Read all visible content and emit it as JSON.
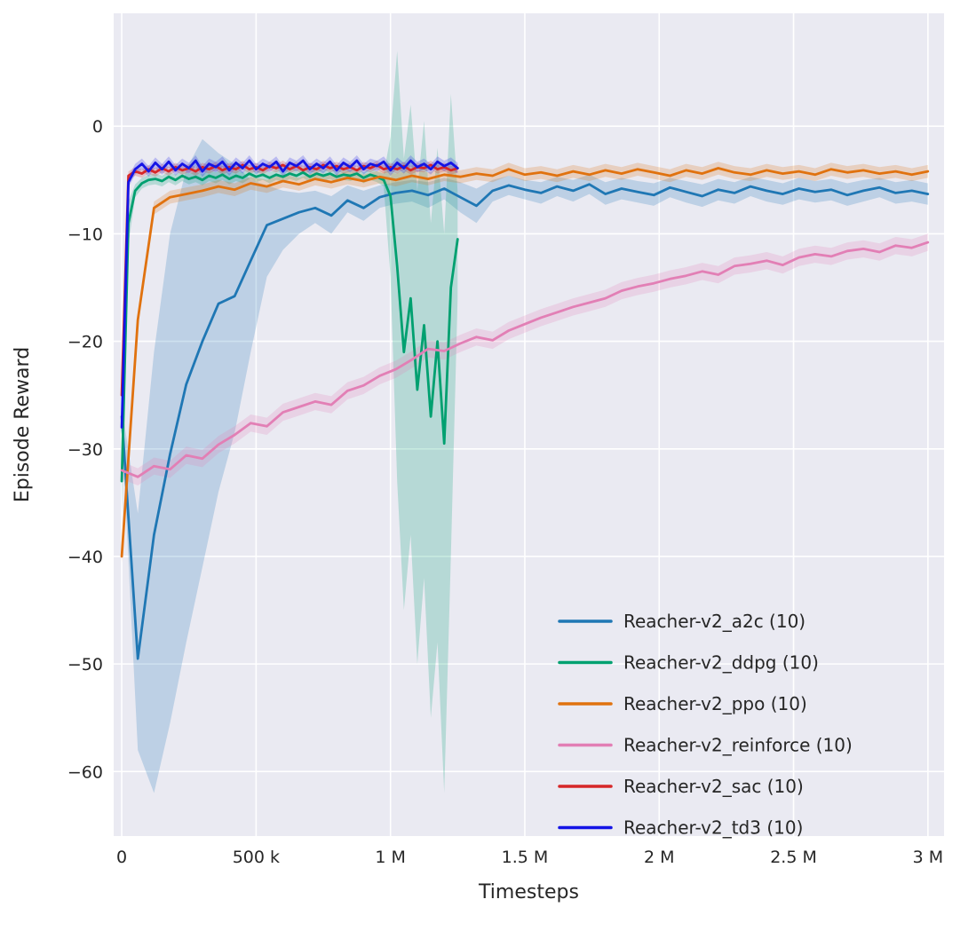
{
  "chart_data": {
    "type": "line",
    "title": "",
    "xlabel": "Timesteps",
    "ylabel": "Episode Reward",
    "x_unit": "timesteps (values below are in thousands)",
    "xlim": [
      -30,
      3060
    ],
    "ylim": [
      -66,
      10.5
    ],
    "grid": true,
    "legend_position": "lower right",
    "xticks": {
      "values": [
        0,
        500,
        1000,
        1500,
        2000,
        2500,
        3000
      ],
      "labels": [
        "0",
        "500 k",
        "1 M",
        "1.5 M",
        "2 M",
        "2.5 M",
        "3 M"
      ]
    },
    "yticks": {
      "values": [
        0,
        -10,
        -20,
        -30,
        -40,
        -50,
        -60
      ],
      "labels": [
        "0",
        "−10",
        "−20",
        "−30",
        "−40",
        "−50",
        "−60"
      ]
    },
    "style": {
      "plot_bg": "#eaeaf2",
      "grid_color": "#ffffff",
      "text_color": "#262626",
      "band_opacity": 0.22,
      "line_width": 2.8
    },
    "series": [
      {
        "name": "a2c",
        "label": "Reacher-v2_a2c (10)",
        "color": "#1f77b4",
        "x": [
          0,
          60,
          120,
          180,
          240,
          300,
          360,
          420,
          480,
          540,
          600,
          660,
          720,
          780,
          840,
          900,
          960,
          1020,
          1080,
          1140,
          1200,
          1260,
          1320,
          1380,
          1440,
          1500,
          1560,
          1620,
          1680,
          1740,
          1800,
          1860,
          1920,
          1980,
          2040,
          2100,
          2160,
          2220,
          2280,
          2340,
          2400,
          2460,
          2520,
          2580,
          2640,
          2700,
          2760,
          2820,
          2880,
          2940,
          3000
        ],
        "y": [
          -27,
          -49.5,
          -38,
          -30.5,
          -24,
          -20,
          -16.5,
          -15.8,
          -12.5,
          -9.2,
          -8.6,
          -8.0,
          -7.6,
          -8.3,
          -6.9,
          -7.6,
          -6.6,
          -6.2,
          -6.0,
          -6.4,
          -5.8,
          -6.6,
          -7.4,
          -6.0,
          -5.5,
          -5.9,
          -6.2,
          -5.6,
          -6.0,
          -5.4,
          -6.3,
          -5.8,
          -6.1,
          -6.4,
          -5.7,
          -6.1,
          -6.5,
          -5.9,
          -6.2,
          -5.6,
          -6.0,
          -6.3,
          -5.8,
          -6.1,
          -5.9,
          -6.4,
          -6.0,
          -5.7,
          -6.2,
          -6.0,
          -6.3
        ],
        "band_hi": [
          -26,
          -36,
          -21,
          -10,
          -4,
          -1.2,
          -2.5,
          -3.5,
          -5.0,
          -5.5,
          -6.0,
          -6.2,
          -6.0,
          -6.5,
          -5.5,
          -6.0,
          -5.5,
          -5.2,
          -5.0,
          -5.2,
          -4.8,
          -5.2,
          -5.8,
          -5.0,
          -4.6,
          -5.0,
          -5.2,
          -4.7,
          -5.0,
          -4.5,
          -5.2,
          -4.8,
          -5.1,
          -5.3,
          -4.8,
          -5.1,
          -5.4,
          -4.9,
          -5.2,
          -4.7,
          -5.0,
          -5.3,
          -4.8,
          -5.1,
          -4.9,
          -5.3,
          -5.0,
          -4.8,
          -5.2,
          -5.0,
          -5.3
        ],
        "band_lo": [
          -28,
          -58,
          -62,
          -55.5,
          -48,
          -41,
          -34,
          -28.5,
          -21,
          -14,
          -11.5,
          -10,
          -9,
          -10,
          -8,
          -8.8,
          -7.6,
          -7.2,
          -7.0,
          -7.6,
          -6.8,
          -8.0,
          -9.0,
          -7.0,
          -6.4,
          -6.8,
          -7.2,
          -6.5,
          -7.0,
          -6.3,
          -7.3,
          -6.8,
          -7.1,
          -7.4,
          -6.6,
          -7.1,
          -7.5,
          -6.9,
          -7.2,
          -6.5,
          -7.0,
          -7.3,
          -6.8,
          -7.1,
          -6.9,
          -7.4,
          -7.0,
          -6.6,
          -7.2,
          -7.0,
          -7.3
        ]
      },
      {
        "name": "ddpg",
        "label": "Reacher-v2_ddpg (10)",
        "color": "#00a070",
        "x": [
          0,
          25,
          50,
          75,
          100,
          125,
          150,
          175,
          200,
          225,
          250,
          275,
          300,
          325,
          350,
          375,
          400,
          425,
          450,
          475,
          500,
          525,
          550,
          575,
          600,
          625,
          650,
          675,
          700,
          725,
          750,
          775,
          800,
          825,
          850,
          875,
          900,
          925,
          950,
          975,
          1000,
          1025,
          1050,
          1075,
          1100,
          1125,
          1150,
          1175,
          1200,
          1225,
          1250
        ],
        "y": [
          -33,
          -9,
          -6.0,
          -5.3,
          -5.0,
          -4.9,
          -5.1,
          -4.7,
          -5.0,
          -4.6,
          -4.9,
          -4.7,
          -5.0,
          -4.6,
          -4.8,
          -4.5,
          -4.9,
          -4.6,
          -4.8,
          -4.4,
          -4.7,
          -4.5,
          -4.8,
          -4.5,
          -4.7,
          -4.4,
          -4.6,
          -4.3,
          -4.7,
          -4.4,
          -4.6,
          -4.4,
          -4.7,
          -4.5,
          -4.6,
          -4.4,
          -4.8,
          -4.5,
          -4.7,
          -5.0,
          -6.5,
          -13,
          -21,
          -16,
          -24.5,
          -18.5,
          -27,
          -20,
          -29.5,
          -15,
          -10.5
        ],
        "band_hi": [
          -30,
          -7,
          -5.4,
          -4.8,
          -4.5,
          -4.4,
          -4.6,
          -4.2,
          -4.5,
          -4.1,
          -4.4,
          -4.2,
          -4.5,
          -4.1,
          -4.3,
          -4.0,
          -4.4,
          -4.1,
          -4.3,
          -3.9,
          -4.2,
          -4.0,
          -4.3,
          -4.0,
          -4.2,
          -3.9,
          -4.1,
          -3.8,
          -4.2,
          -3.9,
          -4.1,
          -3.9,
          -4.2,
          -4.0,
          -4.1,
          -3.9,
          -4.3,
          -4.0,
          -4.2,
          -4.4,
          -1.0,
          7.0,
          -3.0,
          2.0,
          -6.0,
          0.5,
          -9.0,
          -2.0,
          -10.0,
          3.0,
          -6.0
        ],
        "band_lo": [
          -36,
          -11,
          -6.6,
          -5.8,
          -5.5,
          -5.4,
          -5.6,
          -5.2,
          -5.5,
          -5.1,
          -5.4,
          -5.2,
          -5.5,
          -5.1,
          -5.3,
          -5.0,
          -5.4,
          -5.1,
          -5.3,
          -4.9,
          -5.2,
          -5.0,
          -5.3,
          -5.0,
          -5.2,
          -4.9,
          -5.1,
          -4.8,
          -5.2,
          -4.9,
          -5.1,
          -4.9,
          -5.2,
          -5.0,
          -5.1,
          -4.9,
          -5.3,
          -5.0,
          -5.2,
          -5.6,
          -14,
          -33,
          -45,
          -38,
          -50,
          -42,
          -55,
          -48,
          -62,
          -40,
          -16
        ]
      },
      {
        "name": "ppo",
        "label": "Reacher-v2_ppo (10)",
        "color": "#e0720f",
        "x": [
          0,
          60,
          120,
          180,
          240,
          300,
          360,
          420,
          480,
          540,
          600,
          660,
          720,
          780,
          840,
          900,
          960,
          1020,
          1080,
          1140,
          1200,
          1260,
          1320,
          1380,
          1440,
          1500,
          1560,
          1620,
          1680,
          1740,
          1800,
          1860,
          1920,
          1980,
          2040,
          2100,
          2160,
          2220,
          2280,
          2340,
          2400,
          2460,
          2520,
          2580,
          2640,
          2700,
          2760,
          2820,
          2880,
          2940,
          3000
        ],
        "y": [
          -40,
          -18,
          -7.6,
          -6.6,
          -6.3,
          -6.0,
          -5.6,
          -5.9,
          -5.3,
          -5.6,
          -5.1,
          -5.4,
          -4.9,
          -5.2,
          -4.8,
          -5.1,
          -4.7,
          -5.0,
          -4.6,
          -4.9,
          -4.5,
          -4.7,
          -4.4,
          -4.6,
          -4.0,
          -4.5,
          -4.3,
          -4.6,
          -4.2,
          -4.5,
          -4.1,
          -4.4,
          -4.0,
          -4.3,
          -4.6,
          -4.1,
          -4.4,
          -3.9,
          -4.3,
          -4.5,
          -4.1,
          -4.4,
          -4.2,
          -4.5,
          -4.0,
          -4.3,
          -4.1,
          -4.4,
          -4.2,
          -4.5,
          -4.2
        ],
        "band_delta": 0.6
      },
      {
        "name": "reinforce",
        "label": "Reacher-v2_reinforce (10)",
        "color": "#e27fb5",
        "x": [
          0,
          60,
          120,
          180,
          240,
          300,
          360,
          420,
          480,
          540,
          600,
          660,
          720,
          780,
          840,
          900,
          960,
          1020,
          1080,
          1140,
          1200,
          1260,
          1320,
          1380,
          1440,
          1500,
          1560,
          1620,
          1680,
          1740,
          1800,
          1860,
          1920,
          1980,
          2040,
          2100,
          2160,
          2220,
          2280,
          2340,
          2400,
          2460,
          2520,
          2580,
          2640,
          2700,
          2760,
          2820,
          2880,
          2940,
          3000
        ],
        "y": [
          -32,
          -32.6,
          -31.6,
          -31.9,
          -30.6,
          -30.9,
          -29.6,
          -28.7,
          -27.6,
          -27.9,
          -26.6,
          -26.1,
          -25.6,
          -25.9,
          -24.6,
          -24.1,
          -23.2,
          -22.6,
          -21.7,
          -20.7,
          -20.9,
          -20.2,
          -19.6,
          -19.9,
          -19.0,
          -18.4,
          -17.8,
          -17.3,
          -16.8,
          -16.4,
          -16.0,
          -15.3,
          -14.9,
          -14.6,
          -14.2,
          -13.9,
          -13.5,
          -13.8,
          -13.0,
          -12.8,
          -12.5,
          -12.9,
          -12.2,
          -11.9,
          -12.1,
          -11.6,
          -11.4,
          -11.7,
          -11.1,
          -11.3,
          -10.8
        ],
        "band_delta": 0.8
      },
      {
        "name": "sac",
        "label": "Reacher-v2_sac (10)",
        "color": "#d62728",
        "x": [
          0,
          25,
          50,
          75,
          100,
          125,
          150,
          175,
          200,
          225,
          250,
          275,
          300,
          325,
          350,
          375,
          400,
          425,
          450,
          475,
          500,
          525,
          550,
          575,
          600,
          625,
          650,
          675,
          700,
          725,
          750,
          775,
          800,
          825,
          850,
          875,
          900,
          925,
          950,
          975,
          1000,
          1025,
          1050,
          1075,
          1100,
          1125,
          1150,
          1175,
          1200,
          1225,
          1250
        ],
        "y": [
          -25,
          -4.6,
          -4.2,
          -4.4,
          -4.0,
          -4.3,
          -3.9,
          -4.2,
          -3.8,
          -4.1,
          -3.9,
          -4.2,
          -3.8,
          -4.0,
          -3.7,
          -4.1,
          -3.8,
          -4.0,
          -3.6,
          -4.0,
          -3.8,
          -4.1,
          -3.7,
          -3.9,
          -3.6,
          -4.0,
          -3.7,
          -4.1,
          -3.8,
          -4.0,
          -3.6,
          -3.9,
          -3.7,
          -4.0,
          -3.8,
          -4.1,
          -3.7,
          -3.9,
          -3.6,
          -4.0,
          -3.8,
          -4.0,
          -3.7,
          -4.1,
          -3.8,
          -3.9,
          -3.6,
          -4.0,
          -3.8,
          -4.1,
          -3.9
        ],
        "band_delta": 0.4
      },
      {
        "name": "td3",
        "label": "Reacher-v2_td3 (10)",
        "color": "#1414e6",
        "x": [
          0,
          25,
          50,
          75,
          100,
          125,
          150,
          175,
          200,
          225,
          250,
          275,
          300,
          325,
          350,
          375,
          400,
          425,
          450,
          475,
          500,
          525,
          550,
          575,
          600,
          625,
          650,
          675,
          700,
          725,
          750,
          775,
          800,
          825,
          850,
          875,
          900,
          925,
          950,
          975,
          1000,
          1025,
          1050,
          1075,
          1100,
          1125,
          1150,
          1175,
          1200,
          1225,
          1250
        ],
        "y": [
          -28,
          -5.2,
          -4.0,
          -3.5,
          -4.2,
          -3.4,
          -4.0,
          -3.3,
          -4.1,
          -3.5,
          -3.9,
          -3.2,
          -4.2,
          -3.5,
          -3.8,
          -3.3,
          -4.1,
          -3.4,
          -3.9,
          -3.2,
          -4.0,
          -3.5,
          -3.8,
          -3.3,
          -4.2,
          -3.4,
          -3.7,
          -3.2,
          -4.0,
          -3.5,
          -3.9,
          -3.3,
          -4.1,
          -3.4,
          -3.8,
          -3.2,
          -4.0,
          -3.5,
          -3.7,
          -3.3,
          -4.1,
          -3.4,
          -3.9,
          -3.2,
          -3.8,
          -3.5,
          -4.0,
          -3.3,
          -3.7,
          -3.4,
          -3.9
        ],
        "band_delta": 0.5
      }
    ]
  }
}
